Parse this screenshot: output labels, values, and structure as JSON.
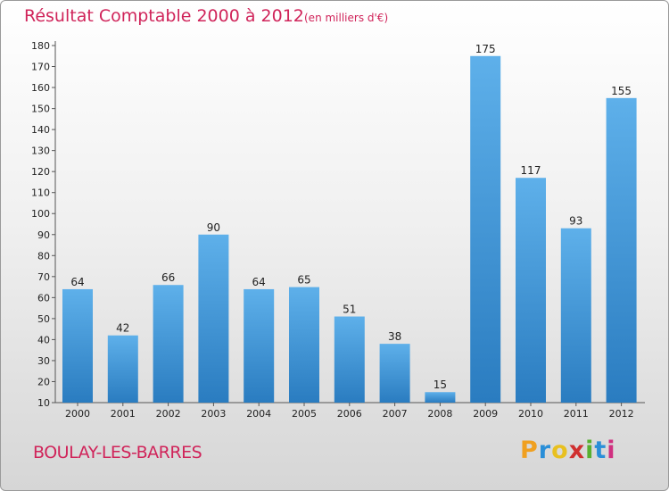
{
  "header": {
    "title": "Résultat Comptable 2000 à 2012",
    "subtitle": "(en milliers d'€)"
  },
  "footer": {
    "commune": "BOULAY-LES-BARRES",
    "logo_letters": [
      "P",
      "r",
      "o",
      "x",
      "i",
      "t",
      "i"
    ],
    "logo_colors": [
      "#f0a020",
      "#2a8fd8",
      "#e8c020",
      "#d03030",
      "#58b030",
      "#2a8fd8",
      "#d03080"
    ]
  },
  "colors": {
    "title": "#d0245a",
    "bar_light": "#5eb0ea",
    "bar_dark": "#2a7cc0"
  },
  "chart_data": {
    "type": "bar",
    "categories": [
      "2000",
      "2001",
      "2002",
      "2003",
      "2004",
      "2005",
      "2006",
      "2007",
      "2008",
      "2009",
      "2010",
      "2011",
      "2012"
    ],
    "values": [
      64,
      42,
      66,
      90,
      64,
      65,
      51,
      38,
      15,
      175,
      117,
      93,
      155
    ],
    "ylim": [
      10,
      180
    ],
    "yticks": [
      10,
      20,
      30,
      40,
      50,
      60,
      70,
      80,
      90,
      100,
      110,
      120,
      130,
      140,
      150,
      160,
      170,
      180
    ],
    "grid": false,
    "title": "Résultat Comptable 2000 à 2012",
    "xlabel": "",
    "ylabel": ""
  }
}
